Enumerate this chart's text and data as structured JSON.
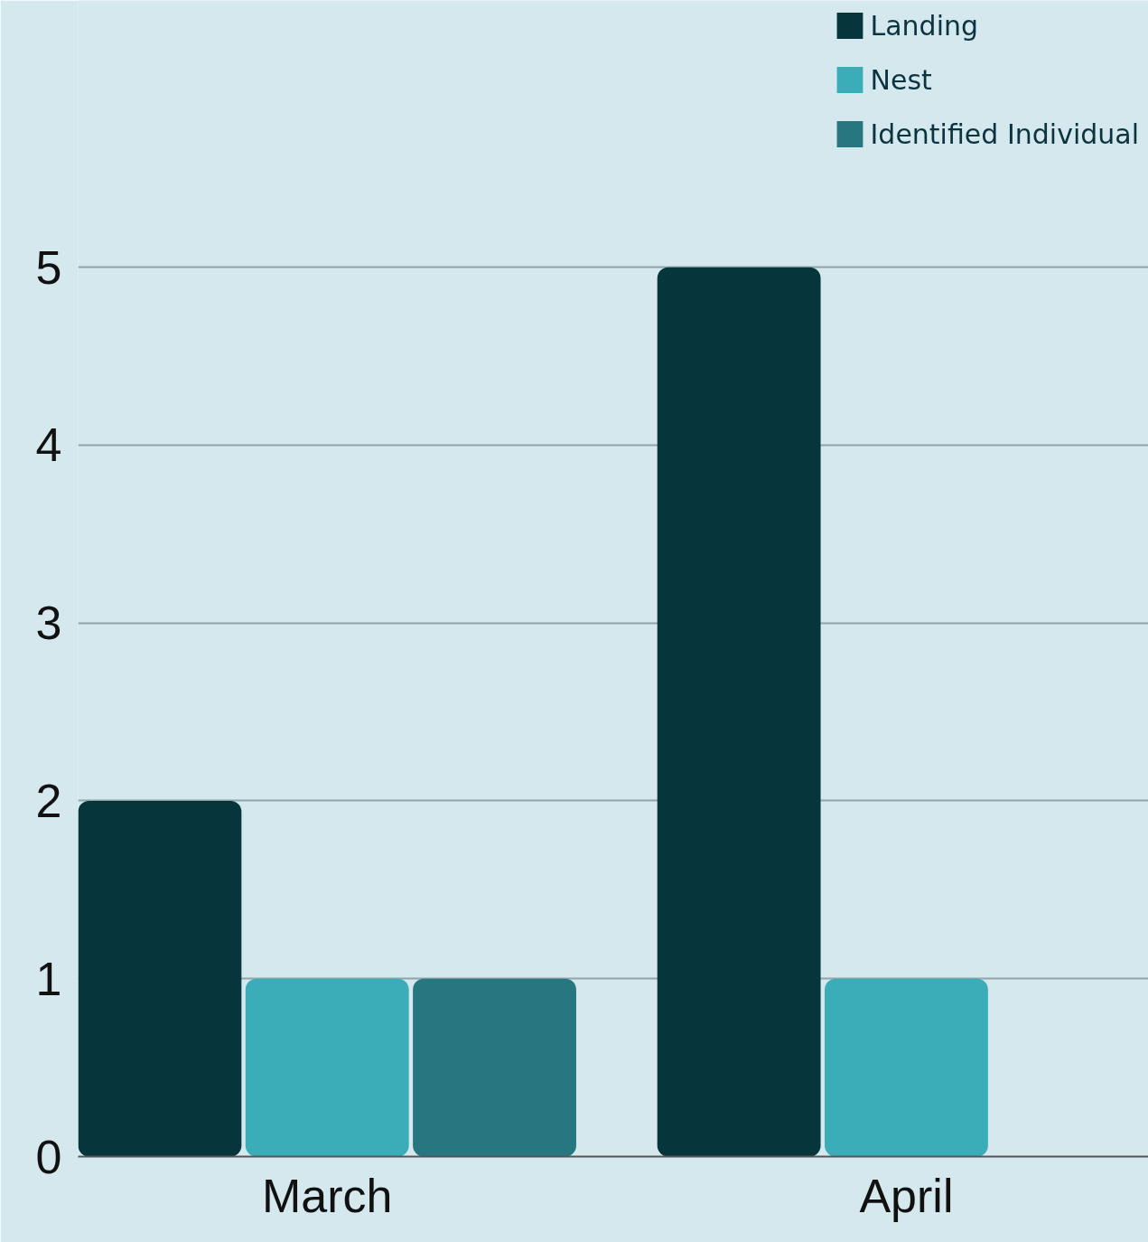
{
  "chart_data": {
    "type": "bar",
    "categories": [
      "March",
      "April"
    ],
    "series": [
      {
        "name": "Landing",
        "color": "#07353c",
        "values": [
          2,
          5
        ]
      },
      {
        "name": "Nest",
        "color": "#3aadb8",
        "values": [
          1,
          1
        ]
      },
      {
        "name": "Identified Individual",
        "color": "#277780",
        "values": [
          1,
          null
        ]
      }
    ],
    "ylim": [
      0,
      6.5
    ],
    "yticks": [
      0,
      1,
      2,
      3,
      4,
      5
    ],
    "grid": "y",
    "legend": "top right"
  }
}
